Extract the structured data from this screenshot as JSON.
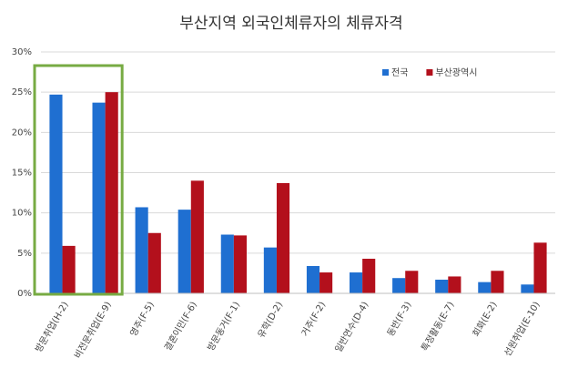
{
  "chart_data": {
    "type": "bar",
    "title": "부산지역 외국인체류자의 체류자격",
    "categories": [
      "방문취업(H-2)",
      "비전문취업(E-9)",
      "영주(F-5)",
      "결혼이민(F-6)",
      "방문동거(F-1)",
      "유학(D-2)",
      "거주(F-2)",
      "일반연수(D-4)",
      "동반(F-3)",
      "특정활동(E-7)",
      "회화(E-2)",
      "선원취업(E-10)"
    ],
    "series": [
      {
        "name": "전국",
        "color": "#1f6fd1",
        "values": [
          24.7,
          23.7,
          10.7,
          10.4,
          7.3,
          5.7,
          3.4,
          2.6,
          1.9,
          1.7,
          1.4,
          1.1
        ]
      },
      {
        "name": "부산광역시",
        "color": "#b3101c",
        "values": [
          5.9,
          25.0,
          7.5,
          14.0,
          7.2,
          13.7,
          2.6,
          4.3,
          2.8,
          2.1,
          2.8,
          6.3
        ]
      }
    ],
    "ylim": [
      0,
      30
    ],
    "yticks": [
      {
        "value": 0,
        "label": "0%"
      },
      {
        "value": 5,
        "label": "5%"
      },
      {
        "value": 10,
        "label": "10%"
      },
      {
        "value": 15,
        "label": "15%"
      },
      {
        "value": 20,
        "label": "20%"
      },
      {
        "value": 25,
        "label": "25%"
      },
      {
        "value": 30,
        "label": "30%"
      }
    ],
    "grid": true,
    "legend": "upper right"
  }
}
